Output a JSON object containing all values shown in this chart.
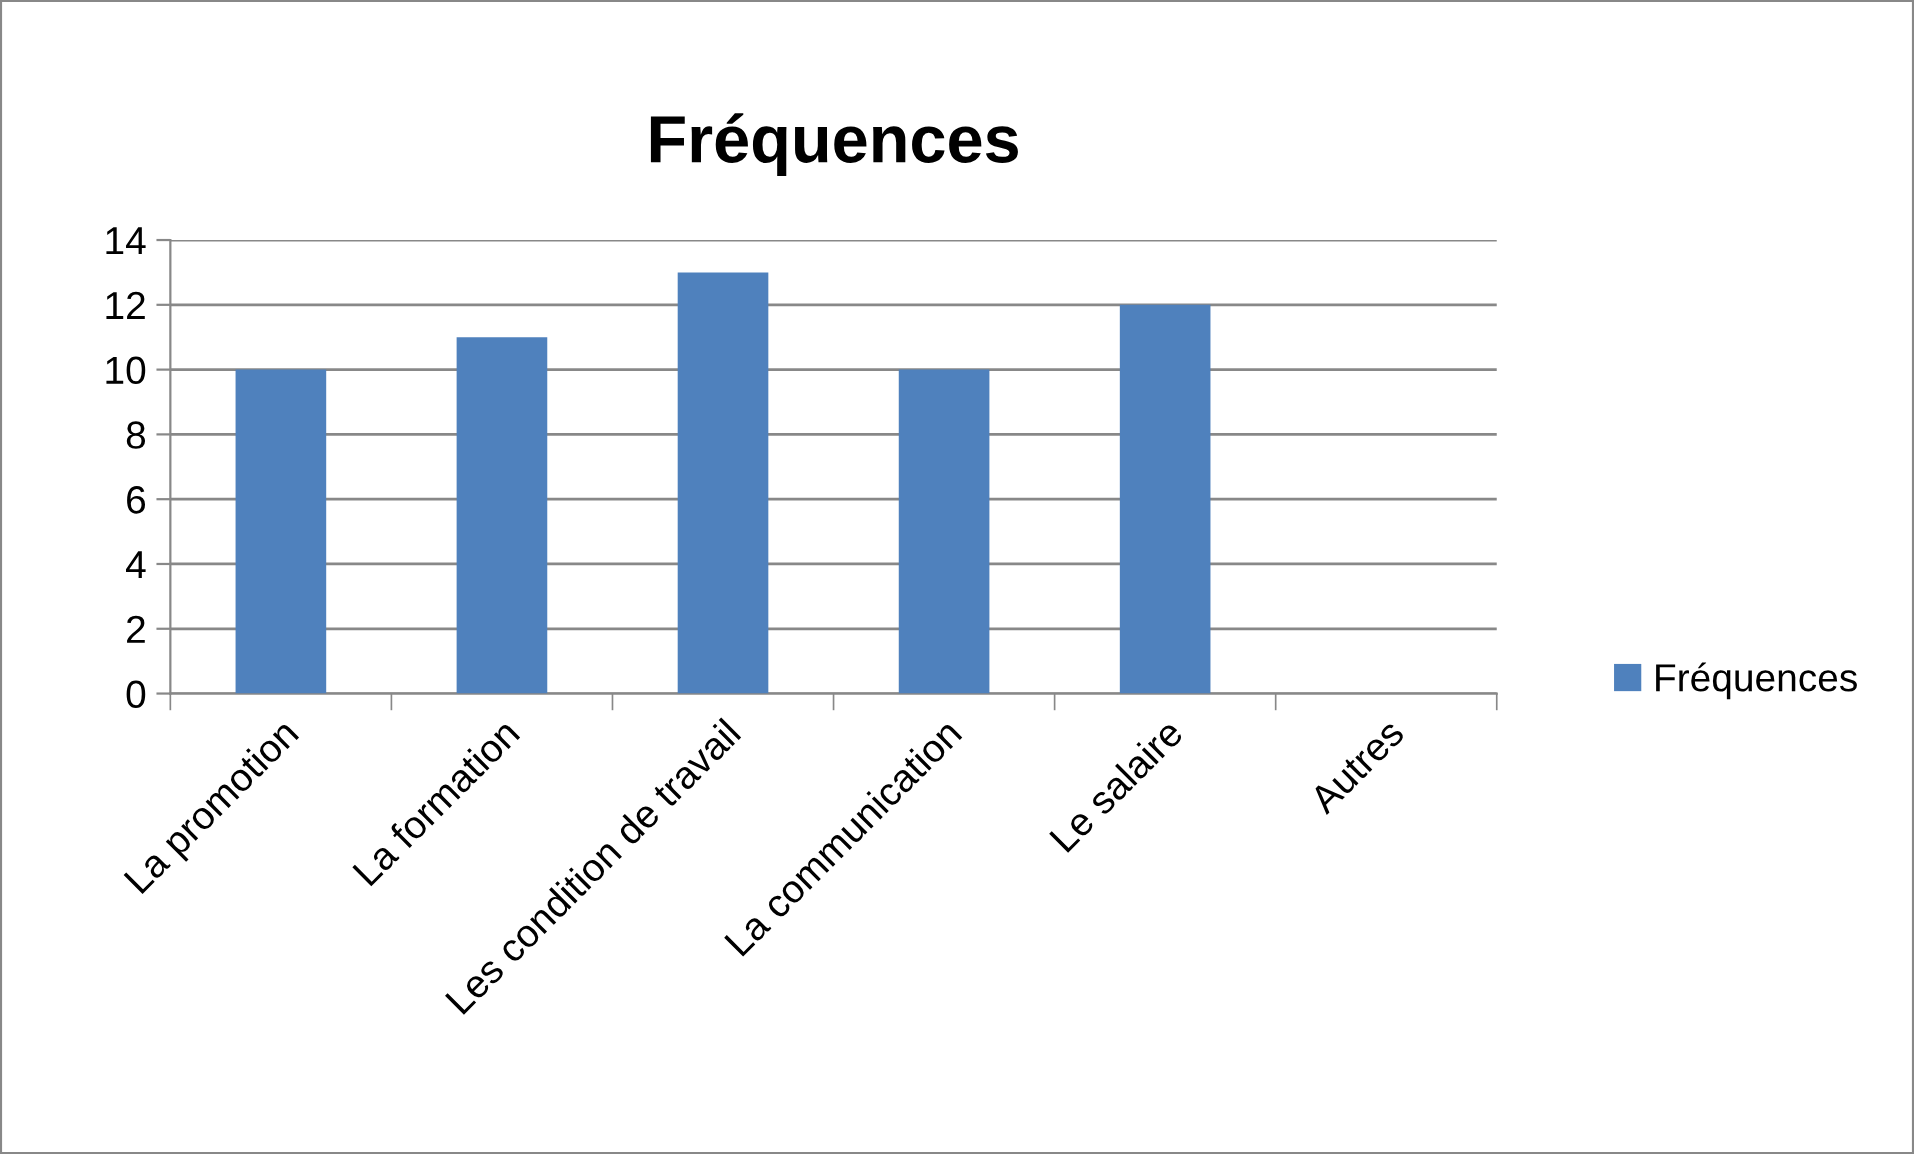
{
  "chart_data": {
    "type": "bar",
    "title": "Fréquences",
    "categories": [
      "La promotion",
      "La formation",
      "Les condition de travail",
      "La communication",
      "Le salaire",
      "Autres"
    ],
    "series": [
      {
        "name": "Fréquences",
        "color": "#4f81bd",
        "values": [
          10,
          11,
          13,
          10,
          12,
          0
        ]
      }
    ],
    "ylim": [
      0,
      14
    ],
    "yticks": [
      0,
      2,
      4,
      6,
      8,
      10,
      12,
      14
    ],
    "grid": "y",
    "legend": "right"
  }
}
